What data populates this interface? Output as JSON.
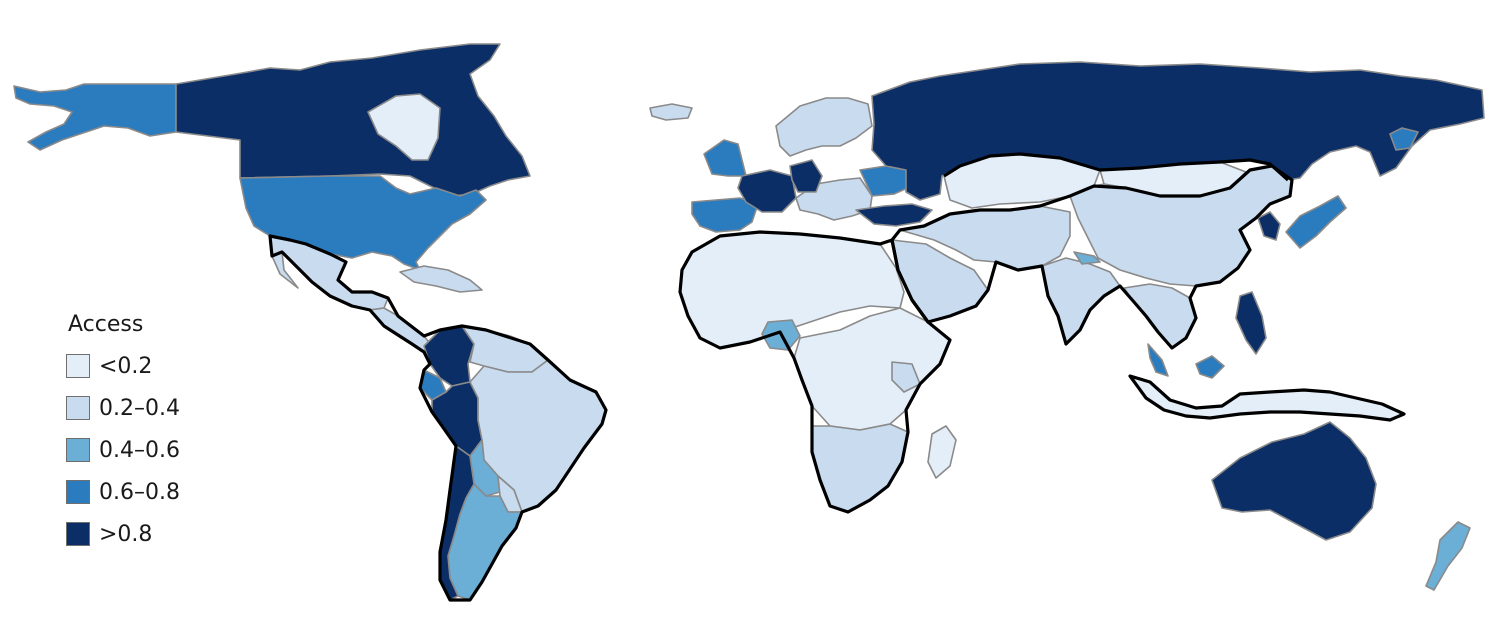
{
  "legend": {
    "title": "Access",
    "items": [
      {
        "label": "<0.2",
        "color": "#e4eef9"
      },
      {
        "label": "0.2–0.4",
        "color": "#c9dbef"
      },
      {
        "label": "0.4–0.6",
        "color": "#6baed6"
      },
      {
        "label": "0.6–0.8",
        "color": "#2b7bbf"
      },
      {
        "label": ">0.8",
        "color": "#0b2e67"
      }
    ]
  },
  "map_data": {
    "regions": [
      {
        "name": "Alaska",
        "bin": 3
      },
      {
        "name": "Canada",
        "bin": 4
      },
      {
        "name": "Greenland",
        "bin": 0
      },
      {
        "name": "United States",
        "bin": 3
      },
      {
        "name": "Mexico",
        "bin": 1
      },
      {
        "name": "Central America",
        "bin": 1
      },
      {
        "name": "Caribbean",
        "bin": 1
      },
      {
        "name": "Colombia",
        "bin": 4
      },
      {
        "name": "Venezuela",
        "bin": 1
      },
      {
        "name": "Ecuador",
        "bin": 3
      },
      {
        "name": "Peru",
        "bin": 4
      },
      {
        "name": "Brazil",
        "bin": 1
      },
      {
        "name": "Bolivia",
        "bin": 2
      },
      {
        "name": "Paraguay",
        "bin": 1
      },
      {
        "name": "Argentina",
        "bin": 2
      },
      {
        "name": "Chile",
        "bin": 4
      },
      {
        "name": "Iceland",
        "bin": 1
      },
      {
        "name": "Ireland and United Kingdom",
        "bin": 3
      },
      {
        "name": "Portugal and Spain",
        "bin": 3
      },
      {
        "name": "France",
        "bin": 4
      },
      {
        "name": "Scandinavia",
        "bin": 1
      },
      {
        "name": "Central Europe",
        "bin": 1
      },
      {
        "name": "Germany",
        "bin": 4
      },
      {
        "name": "Ukraine",
        "bin": 3
      },
      {
        "name": "Turkey",
        "bin": 4
      },
      {
        "name": "Russia",
        "bin": 4
      },
      {
        "name": "Kazakhstan",
        "bin": 0
      },
      {
        "name": "Mongolia",
        "bin": 0
      },
      {
        "name": "China",
        "bin": 1
      },
      {
        "name": "Middle East and Central Asia",
        "bin": 1
      },
      {
        "name": "Saudi Arabia",
        "bin": 1
      },
      {
        "name": "India",
        "bin": 1
      },
      {
        "name": "Nepal",
        "bin": 2
      },
      {
        "name": "Southeast Asia",
        "bin": 1
      },
      {
        "name": "Malaysia",
        "bin": 3
      },
      {
        "name": "Philippines",
        "bin": 4
      },
      {
        "name": "Indonesia",
        "bin": 0
      },
      {
        "name": "Korea",
        "bin": 4
      },
      {
        "name": "Japan",
        "bin": 3
      },
      {
        "name": "North and West Africa",
        "bin": 0
      },
      {
        "name": "Nigeria",
        "bin": 2
      },
      {
        "name": "Central and East Africa",
        "bin": 0
      },
      {
        "name": "Kenya",
        "bin": 1
      },
      {
        "name": "Southern Africa",
        "bin": 1
      },
      {
        "name": "Madagascar",
        "bin": 0
      },
      {
        "name": "Australia",
        "bin": 4
      },
      {
        "name": "New Zealand",
        "bin": 2
      }
    ]
  }
}
